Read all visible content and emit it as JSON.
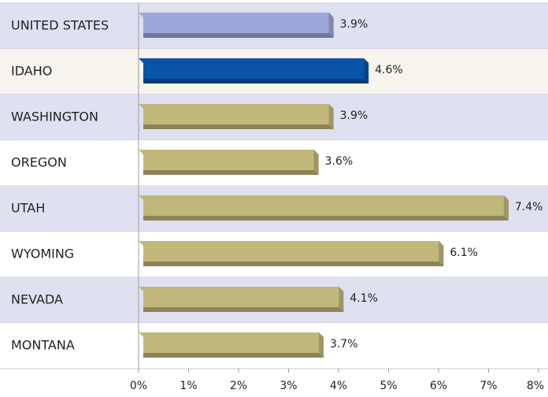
{
  "chart_data": {
    "type": "bar",
    "orientation": "horizontal",
    "categories": [
      "UNITED STATES",
      "IDAHO",
      "WASHINGTON",
      "OREGON",
      "UTAH",
      "WYOMING",
      "NEVADA",
      "MONTANA"
    ],
    "values": [
      3.9,
      4.6,
      3.9,
      3.6,
      7.4,
      6.1,
      4.1,
      3.7
    ],
    "value_labels": [
      "3.9%",
      "4.6%",
      "3.9%",
      "3.6%",
      "7.4%",
      "6.1%",
      "4.1%",
      "3.7%"
    ],
    "colors": [
      "#9ea6d8",
      "#0a54a8",
      "#c2b77a",
      "#c2b77a",
      "#c2b77a",
      "#c2b77a",
      "#c2b77a",
      "#c2b77a"
    ],
    "xlim": [
      0,
      8
    ],
    "xticks": [
      {
        "value": 0,
        "label": "0%"
      },
      {
        "value": 1,
        "label": "1%"
      },
      {
        "value": 2,
        "label": "2%"
      },
      {
        "value": 3,
        "label": "3%"
      },
      {
        "value": 4,
        "label": "4%"
      },
      {
        "value": 5,
        "label": "5%"
      },
      {
        "value": 6,
        "label": "6%"
      },
      {
        "value": 7,
        "label": "7%"
      },
      {
        "value": 8,
        "label": "8%"
      }
    ]
  }
}
